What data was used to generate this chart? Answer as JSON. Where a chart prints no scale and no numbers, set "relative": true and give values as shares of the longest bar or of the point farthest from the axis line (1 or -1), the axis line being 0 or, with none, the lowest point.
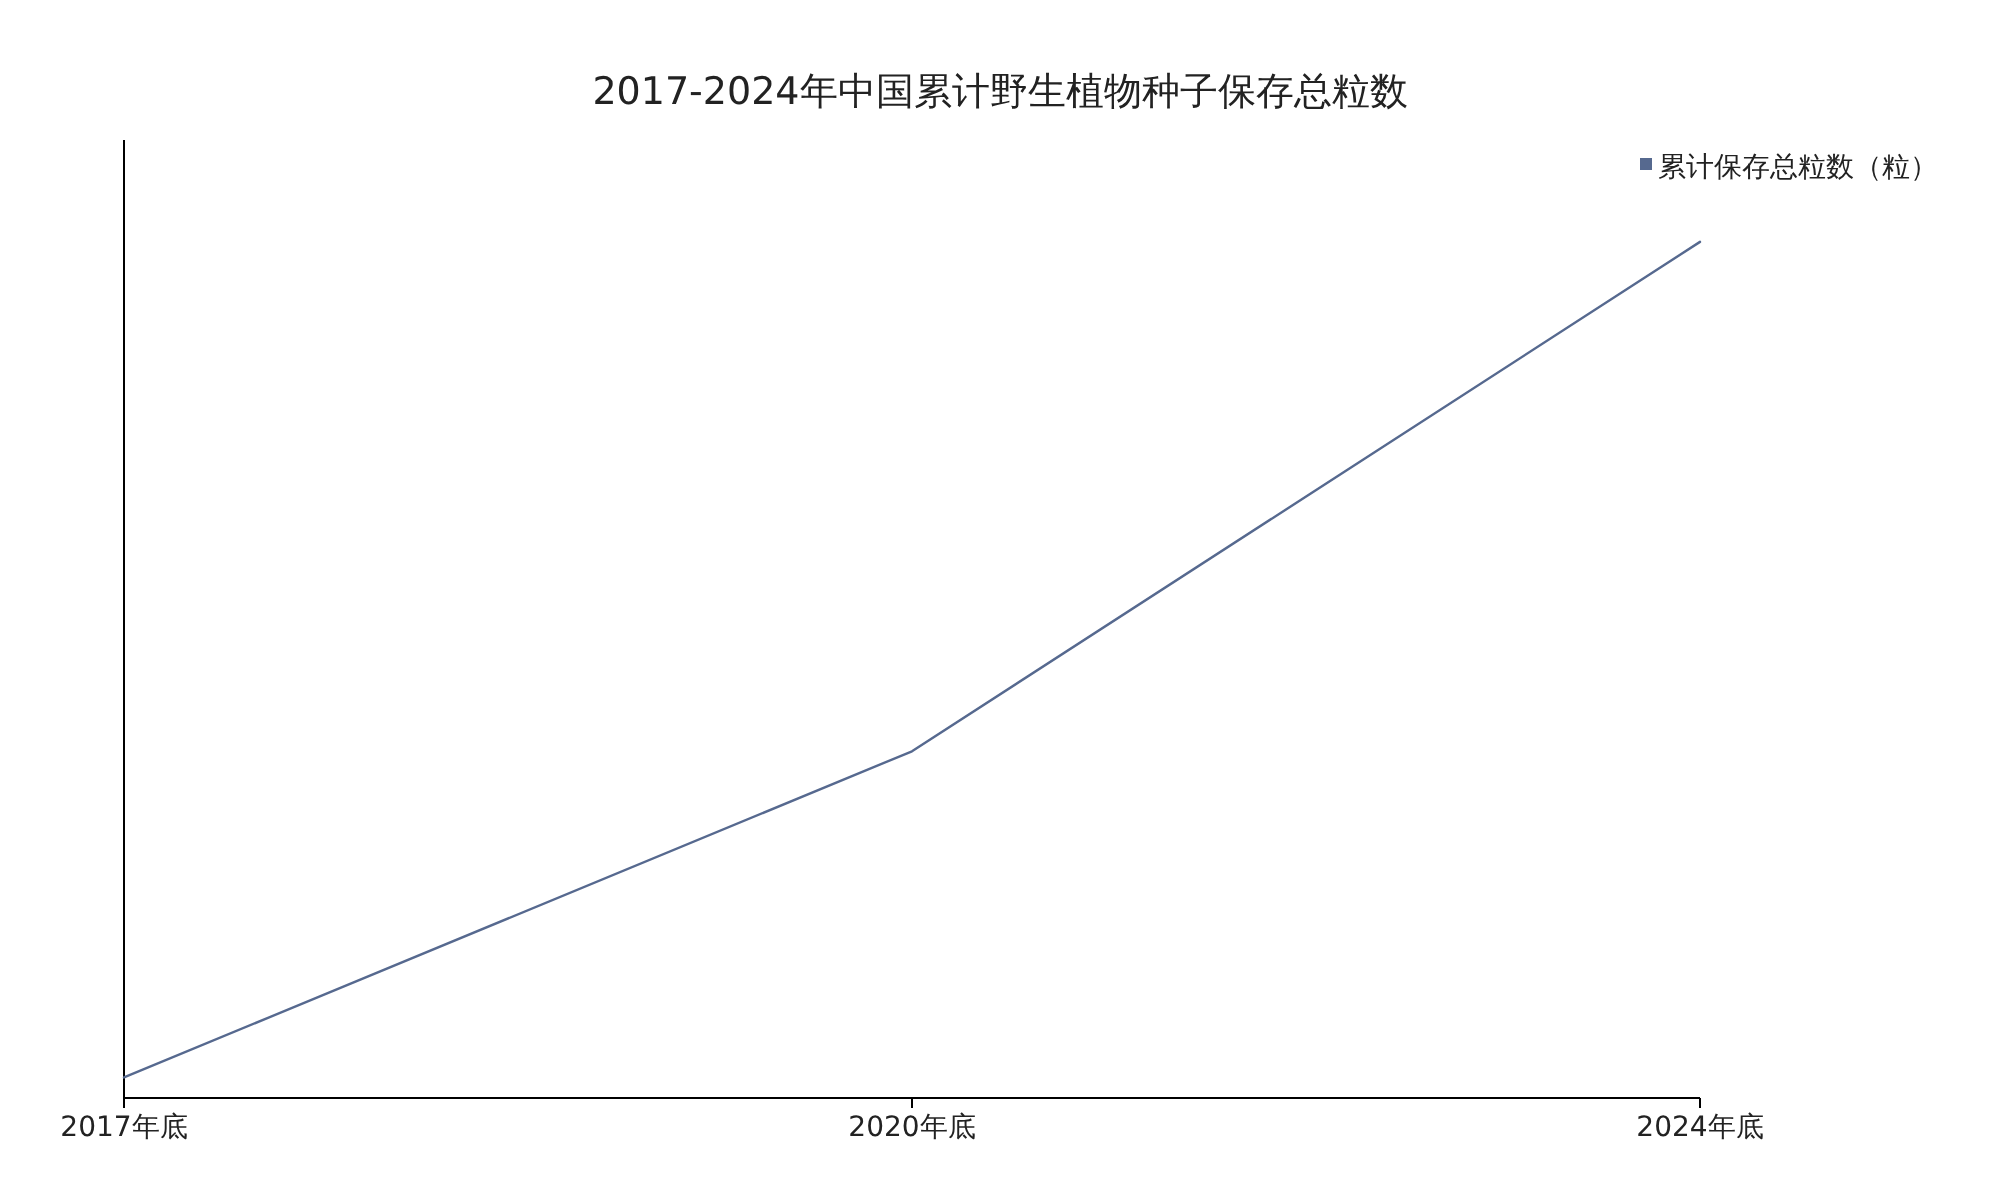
{
  "chart_data": {
    "type": "line",
    "title": "2017-2024年中国累计野生植物种子保存总粒数",
    "categories": [
      "2017年底",
      "2020年底",
      "2024年底"
    ],
    "series": [
      {
        "name": "累计保存总粒数（粒）",
        "color": "#56698f",
        "values": [
          0.024,
          0.405,
          1
        ]
      }
    ],
    "relative": true,
    "legend": "top right",
    "marker": "none",
    "line_style": "solid"
  }
}
